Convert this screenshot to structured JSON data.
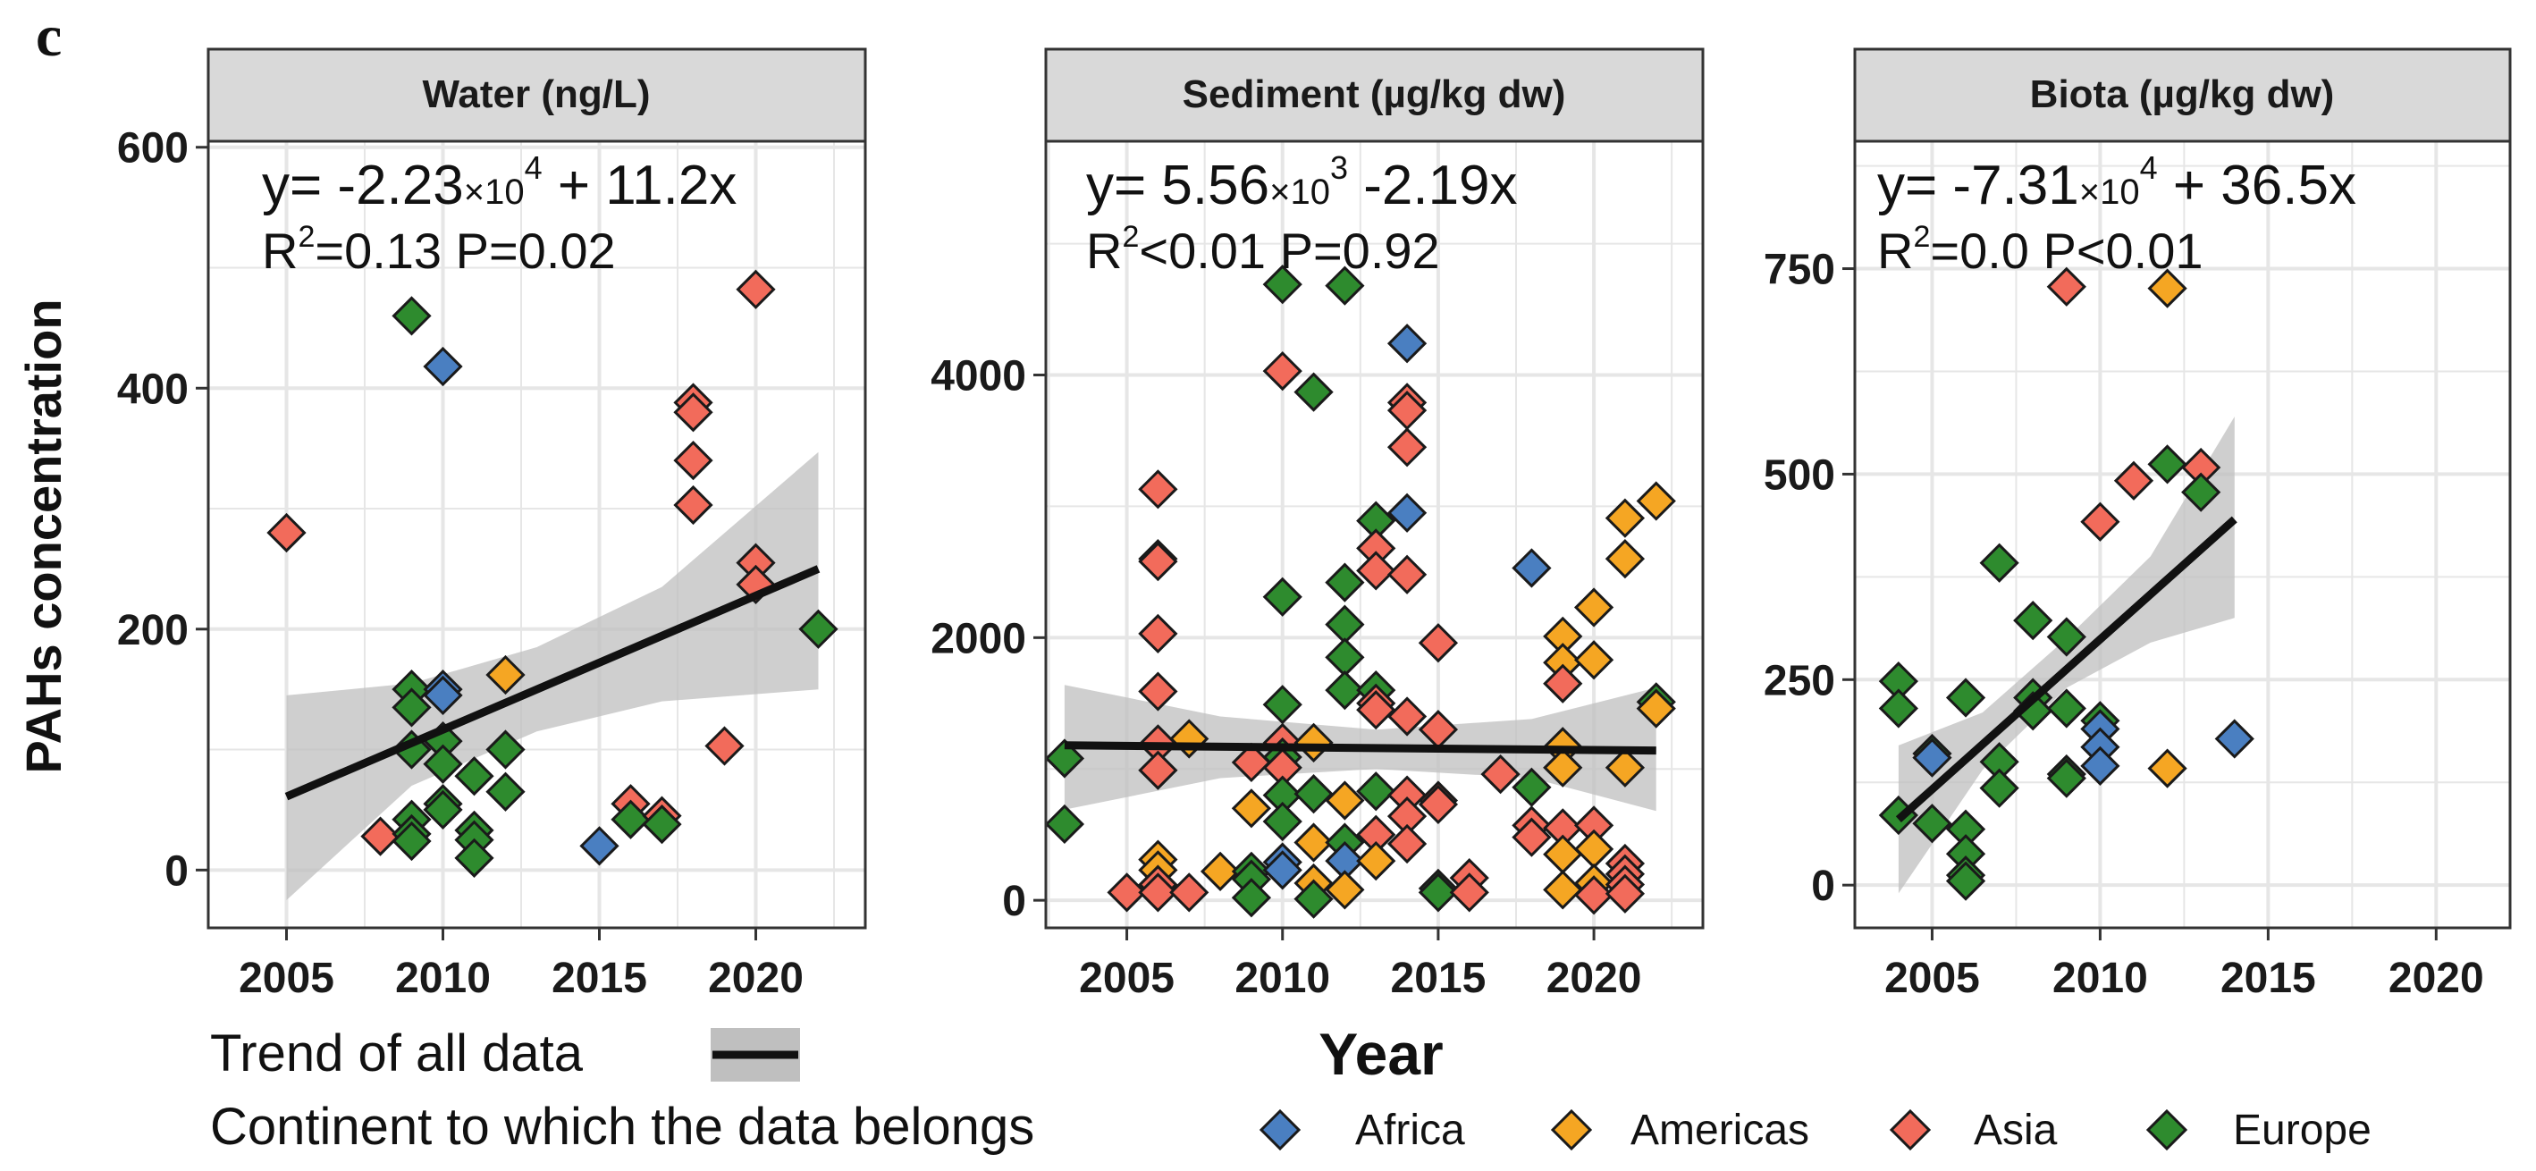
{
  "figure": {
    "panel_letter": "c",
    "y_axis_title": "PAHs concentration",
    "x_axis_title": "Year"
  },
  "legend": {
    "trend_label": "Trend of all data",
    "continent_label": "Continent to which the data belongs",
    "continents": [
      {
        "name": "Africa",
        "color": "#4a7fc1"
      },
      {
        "name": "Americas",
        "color": "#f5a623"
      },
      {
        "name": "Asia",
        "color": "#f26b5b"
      },
      {
        "name": "Europe",
        "color": "#2e8b2e"
      }
    ]
  },
  "colors": {
    "Africa": "#4a7fc1",
    "Americas": "#f5a623",
    "Asia": "#f26b5b",
    "Europe": "#2e8b2e",
    "strip": "#d9d9d9",
    "ribbon": "#bfbfbf",
    "grid": "#e6e6e6"
  },
  "chart_data": [
    {
      "type": "scatter",
      "title": "Water (ng/L)",
      "equation": {
        "prefix": "y= -2.23",
        "times": "×10",
        "exp": "4",
        "suffix": " + 11.2x"
      },
      "stats": {
        "r2_value": "=0.13 P=0.02"
      },
      "xlim": [
        2002.5,
        2023.5
      ],
      "ylim": [
        -48,
        605
      ],
      "xticks": [
        2005,
        2010,
        2015,
        2020
      ],
      "xtick_labels": [
        "2005",
        "2010",
        "2015",
        "2020"
      ],
      "yticks": [
        0,
        200,
        400,
        600
      ],
      "ytick_labels": [
        "0",
        "200",
        "400",
        "600"
      ],
      "trend": {
        "x": [
          2005,
          2022
        ],
        "y": [
          61,
          250
        ]
      },
      "ribbon": {
        "x": [
          2005,
          2009,
          2013,
          2017,
          2022
        ],
        "lower": [
          -25,
          70,
          115,
          140,
          150
        ],
        "upper": [
          145,
          155,
          185,
          235,
          347
        ]
      },
      "points": [
        {
          "x": 2005,
          "y": 280,
          "c": "Asia"
        },
        {
          "x": 2008,
          "y": 28,
          "c": "Asia"
        },
        {
          "x": 2009,
          "y": 460,
          "c": "Europe"
        },
        {
          "x": 2009,
          "y": 150,
          "c": "Europe"
        },
        {
          "x": 2009,
          "y": 135,
          "c": "Europe"
        },
        {
          "x": 2009,
          "y": 100,
          "c": "Europe"
        },
        {
          "x": 2009,
          "y": 42,
          "c": "Europe"
        },
        {
          "x": 2009,
          "y": 30,
          "c": "Europe"
        },
        {
          "x": 2009,
          "y": 24,
          "c": "Europe"
        },
        {
          "x": 2010,
          "y": 418,
          "c": "Africa"
        },
        {
          "x": 2010,
          "y": 150,
          "c": "Africa"
        },
        {
          "x": 2010,
          "y": 145,
          "c": "Africa"
        },
        {
          "x": 2010,
          "y": 107,
          "c": "Europe"
        },
        {
          "x": 2010,
          "y": 88,
          "c": "Europe"
        },
        {
          "x": 2010,
          "y": 55,
          "c": "Europe"
        },
        {
          "x": 2010,
          "y": 50,
          "c": "Europe"
        },
        {
          "x": 2011,
          "y": 78,
          "c": "Europe"
        },
        {
          "x": 2011,
          "y": 33,
          "c": "Europe"
        },
        {
          "x": 2011,
          "y": 25,
          "c": "Europe"
        },
        {
          "x": 2011,
          "y": 10,
          "c": "Europe"
        },
        {
          "x": 2012,
          "y": 162,
          "c": "Americas"
        },
        {
          "x": 2012,
          "y": 100,
          "c": "Europe"
        },
        {
          "x": 2012,
          "y": 65,
          "c": "Europe"
        },
        {
          "x": 2015,
          "y": 20,
          "c": "Africa"
        },
        {
          "x": 2016,
          "y": 55,
          "c": "Asia"
        },
        {
          "x": 2016,
          "y": 42,
          "c": "Europe"
        },
        {
          "x": 2017,
          "y": 45,
          "c": "Asia"
        },
        {
          "x": 2017,
          "y": 38,
          "c": "Europe"
        },
        {
          "x": 2018,
          "y": 388,
          "c": "Asia"
        },
        {
          "x": 2018,
          "y": 380,
          "c": "Asia"
        },
        {
          "x": 2018,
          "y": 340,
          "c": "Asia"
        },
        {
          "x": 2018,
          "y": 303,
          "c": "Asia"
        },
        {
          "x": 2019,
          "y": 103,
          "c": "Asia"
        },
        {
          "x": 2020,
          "y": 482,
          "c": "Asia"
        },
        {
          "x": 2020,
          "y": 255,
          "c": "Asia"
        },
        {
          "x": 2020,
          "y": 237,
          "c": "Asia"
        },
        {
          "x": 2022,
          "y": 200,
          "c": "Europe"
        }
      ]
    },
    {
      "type": "scatter",
      "title": "Sediment (µg/kg dw)",
      "equation": {
        "prefix": "y= 5.56",
        "times": "×10",
        "exp": "3",
        "suffix": " -2.19x"
      },
      "stats": {
        "r2_value": "<0.01 P=0.92"
      },
      "xlim": [
        2002.4,
        2023.5
      ],
      "ylim": [
        -210,
        5780
      ],
      "xticks": [
        2005,
        2010,
        2015,
        2020
      ],
      "xtick_labels": [
        "2005",
        "2010",
        "2015",
        "2020"
      ],
      "yticks": [
        0,
        2000,
        4000
      ],
      "ytick_labels": [
        "0",
        "2000",
        "4000"
      ],
      "trend": {
        "x": [
          2003,
          2022
        ],
        "y": [
          1180,
          1140
        ]
      },
      "ribbon": {
        "x": [
          2003,
          2008,
          2013,
          2018,
          2022
        ],
        "lower": [
          690,
          930,
          1000,
          930,
          680
        ],
        "upper": [
          1640,
          1400,
          1300,
          1380,
          1620
        ]
      },
      "points": [
        {
          "x": 2003,
          "y": 1080,
          "c": "Europe"
        },
        {
          "x": 2003,
          "y": 580,
          "c": "Europe"
        },
        {
          "x": 2005,
          "y": 60,
          "c": "Asia"
        },
        {
          "x": 2006,
          "y": 3130,
          "c": "Asia"
        },
        {
          "x": 2006,
          "y": 2600,
          "c": "Asia"
        },
        {
          "x": 2006,
          "y": 2580,
          "c": "Asia"
        },
        {
          "x": 2006,
          "y": 2030,
          "c": "Asia"
        },
        {
          "x": 2006,
          "y": 1590,
          "c": "Asia"
        },
        {
          "x": 2006,
          "y": 1190,
          "c": "Asia"
        },
        {
          "x": 2006,
          "y": 990,
          "c": "Asia"
        },
        {
          "x": 2006,
          "y": 310,
          "c": "Americas"
        },
        {
          "x": 2006,
          "y": 230,
          "c": "Americas"
        },
        {
          "x": 2006,
          "y": 120,
          "c": "Asia"
        },
        {
          "x": 2006,
          "y": 60,
          "c": "Asia"
        },
        {
          "x": 2007,
          "y": 1230,
          "c": "Americas"
        },
        {
          "x": 2007,
          "y": 60,
          "c": "Asia"
        },
        {
          "x": 2008,
          "y": 220,
          "c": "Americas"
        },
        {
          "x": 2009,
          "y": 1050,
          "c": "Asia"
        },
        {
          "x": 2009,
          "y": 700,
          "c": "Americas"
        },
        {
          "x": 2009,
          "y": 220,
          "c": "Europe"
        },
        {
          "x": 2009,
          "y": 160,
          "c": "Europe"
        },
        {
          "x": 2009,
          "y": 20,
          "c": "Europe"
        },
        {
          "x": 2010,
          "y": 4690,
          "c": "Europe"
        },
        {
          "x": 2010,
          "y": 4030,
          "c": "Asia"
        },
        {
          "x": 2010,
          "y": 2310,
          "c": "Europe"
        },
        {
          "x": 2010,
          "y": 1490,
          "c": "Europe"
        },
        {
          "x": 2010,
          "y": 1200,
          "c": "Asia"
        },
        {
          "x": 2010,
          "y": 1090,
          "c": "Europe"
        },
        {
          "x": 2010,
          "y": 1010,
          "c": "Asia"
        },
        {
          "x": 2010,
          "y": 800,
          "c": "Europe"
        },
        {
          "x": 2010,
          "y": 600,
          "c": "Europe"
        },
        {
          "x": 2010,
          "y": 290,
          "c": "Africa"
        },
        {
          "x": 2010,
          "y": 230,
          "c": "Africa"
        },
        {
          "x": 2011,
          "y": 3870,
          "c": "Europe"
        },
        {
          "x": 2011,
          "y": 1200,
          "c": "Americas"
        },
        {
          "x": 2011,
          "y": 810,
          "c": "Europe"
        },
        {
          "x": 2011,
          "y": 440,
          "c": "Americas"
        },
        {
          "x": 2011,
          "y": 130,
          "c": "Americas"
        },
        {
          "x": 2011,
          "y": 10,
          "c": "Europe"
        },
        {
          "x": 2012,
          "y": 4680,
          "c": "Europe"
        },
        {
          "x": 2012,
          "y": 2420,
          "c": "Europe"
        },
        {
          "x": 2012,
          "y": 2100,
          "c": "Europe"
        },
        {
          "x": 2012,
          "y": 1850,
          "c": "Europe"
        },
        {
          "x": 2012,
          "y": 1600,
          "c": "Europe"
        },
        {
          "x": 2012,
          "y": 760,
          "c": "Americas"
        },
        {
          "x": 2012,
          "y": 440,
          "c": "Europe"
        },
        {
          "x": 2012,
          "y": 300,
          "c": "Africa"
        },
        {
          "x": 2012,
          "y": 80,
          "c": "Americas"
        },
        {
          "x": 2013,
          "y": 2890,
          "c": "Europe"
        },
        {
          "x": 2013,
          "y": 2680,
          "c": "Asia"
        },
        {
          "x": 2013,
          "y": 2510,
          "c": "Asia"
        },
        {
          "x": 2013,
          "y": 1600,
          "c": "Europe"
        },
        {
          "x": 2013,
          "y": 1500,
          "c": "Asia"
        },
        {
          "x": 2013,
          "y": 1450,
          "c": "Asia"
        },
        {
          "x": 2013,
          "y": 830,
          "c": "Europe"
        },
        {
          "x": 2013,
          "y": 500,
          "c": "Asia"
        },
        {
          "x": 2013,
          "y": 300,
          "c": "Americas"
        },
        {
          "x": 2014,
          "y": 4240,
          "c": "Africa"
        },
        {
          "x": 2014,
          "y": 3790,
          "c": "Asia"
        },
        {
          "x": 2014,
          "y": 3730,
          "c": "Asia"
        },
        {
          "x": 2014,
          "y": 3450,
          "c": "Asia"
        },
        {
          "x": 2014,
          "y": 2950,
          "c": "Africa"
        },
        {
          "x": 2014,
          "y": 2480,
          "c": "Asia"
        },
        {
          "x": 2014,
          "y": 1400,
          "c": "Asia"
        },
        {
          "x": 2014,
          "y": 800,
          "c": "Asia"
        },
        {
          "x": 2014,
          "y": 640,
          "c": "Asia"
        },
        {
          "x": 2014,
          "y": 430,
          "c": "Asia"
        },
        {
          "x": 2015,
          "y": 1960,
          "c": "Asia"
        },
        {
          "x": 2015,
          "y": 1300,
          "c": "Asia"
        },
        {
          "x": 2015,
          "y": 760,
          "c": "Asia"
        },
        {
          "x": 2015,
          "y": 730,
          "c": "Asia"
        },
        {
          "x": 2015,
          "y": 90,
          "c": "Europe"
        },
        {
          "x": 2015,
          "y": 60,
          "c": "Europe"
        },
        {
          "x": 2016,
          "y": 170,
          "c": "Asia"
        },
        {
          "x": 2016,
          "y": 60,
          "c": "Asia"
        },
        {
          "x": 2017,
          "y": 960,
          "c": "Asia"
        },
        {
          "x": 2018,
          "y": 2530,
          "c": "Africa"
        },
        {
          "x": 2018,
          "y": 860,
          "c": "Europe"
        },
        {
          "x": 2018,
          "y": 570,
          "c": "Asia"
        },
        {
          "x": 2018,
          "y": 480,
          "c": "Asia"
        },
        {
          "x": 2019,
          "y": 2010,
          "c": "Americas"
        },
        {
          "x": 2019,
          "y": 1810,
          "c": "Americas"
        },
        {
          "x": 2019,
          "y": 1650,
          "c": "Asia"
        },
        {
          "x": 2019,
          "y": 1170,
          "c": "Americas"
        },
        {
          "x": 2019,
          "y": 1010,
          "c": "Americas"
        },
        {
          "x": 2019,
          "y": 550,
          "c": "Asia"
        },
        {
          "x": 2019,
          "y": 350,
          "c": "Americas"
        },
        {
          "x": 2019,
          "y": 80,
          "c": "Americas"
        },
        {
          "x": 2020,
          "y": 2230,
          "c": "Americas"
        },
        {
          "x": 2020,
          "y": 1830,
          "c": "Americas"
        },
        {
          "x": 2020,
          "y": 570,
          "c": "Asia"
        },
        {
          "x": 2020,
          "y": 390,
          "c": "Americas"
        },
        {
          "x": 2020,
          "y": 130,
          "c": "Americas"
        },
        {
          "x": 2020,
          "y": 40,
          "c": "Asia"
        },
        {
          "x": 2021,
          "y": 2910,
          "c": "Americas"
        },
        {
          "x": 2021,
          "y": 2600,
          "c": "Americas"
        },
        {
          "x": 2021,
          "y": 1010,
          "c": "Americas"
        },
        {
          "x": 2021,
          "y": 280,
          "c": "Asia"
        },
        {
          "x": 2021,
          "y": 200,
          "c": "Asia"
        },
        {
          "x": 2021,
          "y": 120,
          "c": "Asia"
        },
        {
          "x": 2021,
          "y": 50,
          "c": "Asia"
        },
        {
          "x": 2022,
          "y": 3040,
          "c": "Americas"
        },
        {
          "x": 2022,
          "y": 1510,
          "c": "Europe"
        },
        {
          "x": 2022,
          "y": 1460,
          "c": "Americas"
        }
      ]
    },
    {
      "type": "scatter",
      "title": "Biota (µg/kg dw)",
      "equation": {
        "prefix": "y= -7.31",
        "times": "×10",
        "exp": "4",
        "suffix": " + 36.5x"
      },
      "stats": {
        "r2_value": "=0.0 P<0.01"
      },
      "xlim": [
        2002.7,
        2022.2
      ],
      "ylim": [
        -52,
        905
      ],
      "xticks": [
        2005,
        2010,
        2015,
        2020
      ],
      "xtick_labels": [
        "2005",
        "2010",
        "2015",
        "2020"
      ],
      "yticks": [
        0,
        250,
        500,
        750
      ],
      "ytick_labels": [
        "0",
        "250",
        "500",
        "750"
      ],
      "trend": {
        "x": [
          2004,
          2014
        ],
        "y": [
          80,
          445
        ]
      },
      "ribbon": {
        "x": [
          2004,
          2006.5,
          2009,
          2011.5,
          2014
        ],
        "lower": [
          -10,
          140,
          240,
          295,
          325
        ],
        "upper": [
          170,
          210,
          300,
          400,
          570
        ]
      },
      "points": [
        {
          "x": 2004,
          "y": 248,
          "c": "Europe"
        },
        {
          "x": 2004,
          "y": 215,
          "c": "Europe"
        },
        {
          "x": 2004,
          "y": 85,
          "c": "Europe"
        },
        {
          "x": 2005,
          "y": 160,
          "c": "Europe"
        },
        {
          "x": 2005,
          "y": 155,
          "c": "Africa"
        },
        {
          "x": 2005,
          "y": 75,
          "c": "Europe"
        },
        {
          "x": 2006,
          "y": 228,
          "c": "Europe"
        },
        {
          "x": 2006,
          "y": 68,
          "c": "Europe"
        },
        {
          "x": 2006,
          "y": 38,
          "c": "Europe"
        },
        {
          "x": 2006,
          "y": 12,
          "c": "Europe"
        },
        {
          "x": 2006,
          "y": 5,
          "c": "Europe"
        },
        {
          "x": 2007,
          "y": 392,
          "c": "Europe"
        },
        {
          "x": 2007,
          "y": 150,
          "c": "Europe"
        },
        {
          "x": 2007,
          "y": 118,
          "c": "Europe"
        },
        {
          "x": 2008,
          "y": 322,
          "c": "Europe"
        },
        {
          "x": 2008,
          "y": 228,
          "c": "Europe"
        },
        {
          "x": 2008,
          "y": 212,
          "c": "Europe"
        },
        {
          "x": 2009,
          "y": 728,
          "c": "Asia"
        },
        {
          "x": 2009,
          "y": 302,
          "c": "Europe"
        },
        {
          "x": 2009,
          "y": 215,
          "c": "Europe"
        },
        {
          "x": 2009,
          "y": 135,
          "c": "Europe"
        },
        {
          "x": 2009,
          "y": 130,
          "c": "Europe"
        },
        {
          "x": 2010,
          "y": 442,
          "c": "Asia"
        },
        {
          "x": 2010,
          "y": 200,
          "c": "Europe"
        },
        {
          "x": 2010,
          "y": 190,
          "c": "Africa"
        },
        {
          "x": 2010,
          "y": 168,
          "c": "Africa"
        },
        {
          "x": 2010,
          "y": 145,
          "c": "Africa"
        },
        {
          "x": 2011,
          "y": 492,
          "c": "Asia"
        },
        {
          "x": 2012,
          "y": 726,
          "c": "Americas"
        },
        {
          "x": 2012,
          "y": 512,
          "c": "Europe"
        },
        {
          "x": 2012,
          "y": 142,
          "c": "Americas"
        },
        {
          "x": 2013,
          "y": 508,
          "c": "Asia"
        },
        {
          "x": 2013,
          "y": 478,
          "c": "Europe"
        },
        {
          "x": 2014,
          "y": 178,
          "c": "Africa"
        }
      ]
    }
  ]
}
